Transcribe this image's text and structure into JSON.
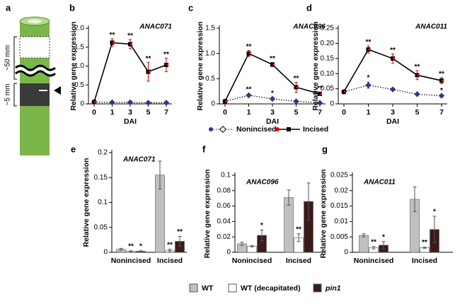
{
  "diagram": {
    "panel": "a",
    "labels": [
      "~50 mm",
      "~5 mm"
    ]
  },
  "chart_data": [
    {
      "type": "line",
      "panel": "b",
      "title": "ANAC071",
      "xlabel": "DAI",
      "ylabel": "Relative gene expression",
      "categories": [
        "0",
        "1",
        "3",
        "5",
        "7"
      ],
      "ylim": [
        0,
        2
      ],
      "yticks": [
        0,
        0.5,
        {
          "value": 1,
          "label": "1.0"
        },
        1.5,
        {
          "value": 2,
          "label": "2.0"
        }
      ],
      "series": [
        {
          "name": "Nonincised",
          "color": "#2b3a8c",
          "values": [
            0.05,
            0.04,
            0.04,
            0.03,
            0.03
          ],
          "errors": [
            0.01,
            0.01,
            0.01,
            0.01,
            0.01
          ],
          "annotations": [
            null,
            null,
            null,
            null,
            null
          ]
        },
        {
          "name": "Incised",
          "color": "#000000",
          "values": [
            0.05,
            1.62,
            1.58,
            0.85,
            1.03
          ],
          "errors": [
            0.01,
            0.1,
            0.12,
            0.25,
            0.18
          ],
          "annotations": [
            null,
            "**",
            "**",
            "**",
            "**"
          ]
        }
      ]
    },
    {
      "type": "line",
      "panel": "c",
      "title": "ANAC096",
      "xlabel": "DAI",
      "ylabel": "Relative gene expression",
      "categories": [
        "0",
        "1",
        "3",
        "5",
        "7"
      ],
      "ylim": [
        0,
        1.5
      ],
      "yticks": [
        0,
        0.5,
        {
          "value": 1,
          "label": "1.0"
        },
        1.5
      ],
      "series": [
        {
          "name": "Nonincised",
          "color": "#2b3a8c",
          "values": [
            0.05,
            0.17,
            0.1,
            0.05,
            0.02
          ],
          "errors": [
            0.01,
            0.03,
            0.02,
            0.01,
            0.01
          ],
          "annotations": [
            null,
            "**",
            "*",
            null,
            null
          ]
        },
        {
          "name": "Incised",
          "color": "#000000",
          "values": [
            0.05,
            1.0,
            0.78,
            0.33,
            0.2
          ],
          "errors": [
            0.01,
            0.06,
            0.04,
            0.1,
            0.03
          ],
          "annotations": [
            null,
            "**",
            "**",
            "**",
            "**"
          ]
        }
      ]
    },
    {
      "type": "line",
      "panel": "d",
      "title": "ANAC011",
      "xlabel": "DAI",
      "ylabel": "Relative gene expression",
      "categories": [
        "0",
        "1",
        "3",
        "5",
        "7"
      ],
      "ylim": [
        0,
        0.25
      ],
      "yticks": [
        0,
        0.05,
        {
          "value": 0.1,
          "label": "0.10"
        },
        0.15,
        {
          "value": 0.2,
          "label": "0.20"
        },
        0.25
      ],
      "series": [
        {
          "name": "Nonincised",
          "color": "#2b3a8c",
          "values": [
            0.04,
            0.062,
            0.048,
            0.032,
            0.027
          ],
          "errors": [
            0.003,
            0.01,
            0.004,
            0.003,
            0.003
          ],
          "annotations": [
            null,
            "*",
            null,
            null,
            "*"
          ]
        },
        {
          "name": "Incised",
          "color": "#000000",
          "values": [
            0.04,
            0.18,
            0.15,
            0.095,
            0.077
          ],
          "errors": [
            0.003,
            0.012,
            0.015,
            0.015,
            0.01
          ],
          "annotations": [
            null,
            "**",
            "**",
            "**",
            "**"
          ]
        }
      ]
    },
    {
      "type": "bar",
      "panel": "e",
      "title": "ANAC071",
      "ylabel": "Relative gene expression",
      "categories": [
        "Nonincised",
        "Incised"
      ],
      "ylim": [
        0,
        0.2
      ],
      "yticks": [
        0,
        0.05,
        0.1,
        0.15,
        0.2
      ],
      "series": [
        {
          "name": "WT",
          "color": "#c0c0c0",
          "values": [
            0.006,
            0.155
          ],
          "errors": [
            0.002,
            0.028
          ],
          "annotations": [
            null,
            null
          ]
        },
        {
          "name": "WT (decapitated)",
          "color": "#ffffff",
          "values": [
            0.002,
            0.004
          ],
          "errors": [
            0.001,
            0.002
          ],
          "annotations": [
            "**",
            "**"
          ]
        },
        {
          "name": "pin1",
          "color": "#3b1a1a",
          "values": [
            0.002,
            0.022
          ],
          "errors": [
            0.001,
            0.01
          ],
          "annotations": [
            "*",
            "**"
          ]
        }
      ]
    },
    {
      "type": "bar",
      "panel": "f",
      "title": "ANAC096",
      "ylabel": "Relative gene expression",
      "categories": [
        "Nonincised",
        "Incised"
      ],
      "ylim": [
        0,
        0.1
      ],
      "yticks": [
        0,
        0.02,
        0.04,
        0.06,
        0.08,
        0.1
      ],
      "series": [
        {
          "name": "WT",
          "color": "#c0c0c0",
          "values": [
            0.011,
            0.071
          ],
          "errors": [
            0.002,
            0.01
          ],
          "annotations": [
            null,
            null
          ]
        },
        {
          "name": "WT (decapitated)",
          "color": "#ffffff",
          "values": [
            0.008,
            0.019
          ],
          "errors": [
            0.001,
            0.005
          ],
          "annotations": [
            null,
            "**"
          ]
        },
        {
          "name": "pin1",
          "color": "#3b1a1a",
          "values": [
            0.022,
            0.066
          ],
          "errors": [
            0.007,
            0.024
          ],
          "annotations": [
            "*",
            null
          ]
        }
      ]
    },
    {
      "type": "bar",
      "panel": "g",
      "title": "ANAC011",
      "ylabel": "Relative gene expression",
      "categories": [
        "Nonincised",
        "Incised"
      ],
      "ylim": [
        0,
        0.025
      ],
      "yticks": [
        0,
        0.005,
        0.01,
        0.015,
        0.02,
        0.025
      ],
      "series": [
        {
          "name": "WT",
          "color": "#c0c0c0",
          "values": [
            0.0055,
            0.0172
          ],
          "errors": [
            0.0005,
            0.004
          ],
          "annotations": [
            null,
            null
          ]
        },
        {
          "name": "WT (decapitated)",
          "color": "#ffffff",
          "values": [
            0.0015,
            0.0015
          ],
          "errors": [
            0.0004,
            0.0002
          ],
          "annotations": [
            "**",
            "**"
          ]
        },
        {
          "name": "pin1",
          "color": "#3b1a1a",
          "values": [
            0.0023,
            0.0074
          ],
          "errors": [
            0.0012,
            0.0043
          ],
          "annotations": [
            "*",
            "*"
          ]
        }
      ]
    }
  ]
}
